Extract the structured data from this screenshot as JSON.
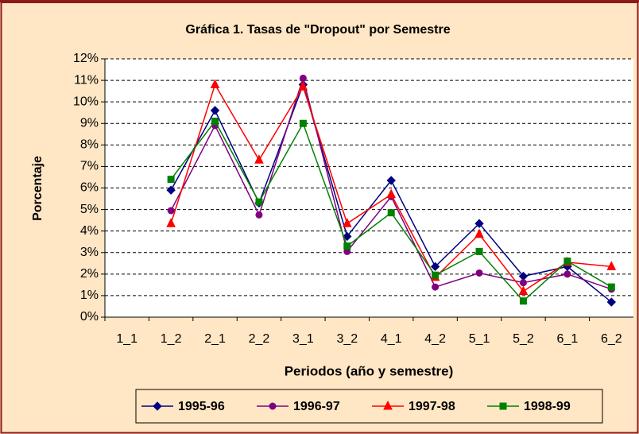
{
  "chart_data": {
    "type": "line",
    "title": "Gráfica 1.  Tasas de \"Dropout\" por Semestre",
    "x_label": "Periodos (año y semestre)",
    "y_label": "Porcentaje",
    "categories": [
      "1_1",
      "1_2",
      "2_1",
      "2_2",
      "3_1",
      "3_2",
      "4_1",
      "4_2",
      "5_1",
      "5_2",
      "6_1",
      "6_2"
    ],
    "series": [
      {
        "name": "1995-96",
        "color": "#000080",
        "marker": "diamond",
        "values": [
          null,
          5.9,
          9.6,
          5.3,
          10.8,
          3.75,
          6.35,
          2.35,
          4.35,
          1.9,
          2.35,
          0.7
        ]
      },
      {
        "name": "1996-97",
        "color": "#800080",
        "marker": "circle",
        "values": [
          null,
          4.95,
          8.9,
          4.75,
          11.1,
          3.05,
          5.6,
          1.4,
          2.05,
          1.6,
          2.0,
          1.3
        ]
      },
      {
        "name": "1997-98",
        "color": "#FF0000",
        "marker": "triangle",
        "values": [
          null,
          4.35,
          10.8,
          7.3,
          10.7,
          4.35,
          5.7,
          1.85,
          3.85,
          1.2,
          2.55,
          2.35
        ]
      },
      {
        "name": "1998-99",
        "color": "#008000",
        "marker": "square",
        "values": [
          null,
          6.4,
          9.1,
          5.35,
          9.0,
          3.3,
          4.85,
          1.95,
          3.05,
          0.75,
          2.6,
          1.4
        ]
      }
    ],
    "ylim": [
      0,
      12
    ],
    "yticks": [
      {
        "value": 0,
        "label": "0%"
      },
      {
        "value": 1,
        "label": "1%"
      },
      {
        "value": 2,
        "label": "2%"
      },
      {
        "value": 3,
        "label": "3%"
      },
      {
        "value": 4,
        "label": "4%"
      },
      {
        "value": 5,
        "label": "5%"
      },
      {
        "value": 6,
        "label": "6%"
      },
      {
        "value": 7,
        "label": "7%"
      },
      {
        "value": 8,
        "label": "8%"
      },
      {
        "value": 9,
        "label": "9%"
      },
      {
        "value": 10,
        "label": "10%"
      },
      {
        "value": 11,
        "label": "11%"
      },
      {
        "value": 12,
        "label": "12%"
      }
    ],
    "grid": true,
    "legend": "bottom"
  }
}
